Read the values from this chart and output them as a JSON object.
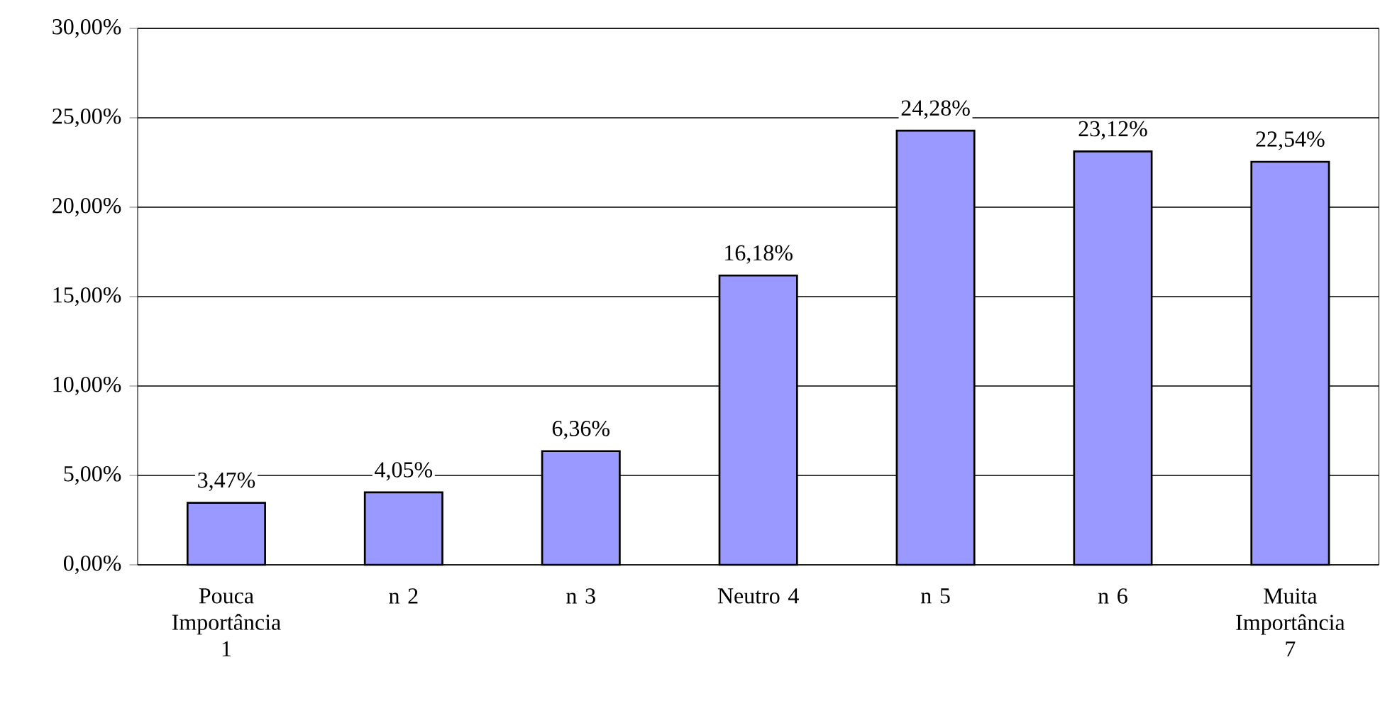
{
  "chart_data": {
    "type": "bar",
    "categories": [
      "Pouca Importância 1",
      "n 2",
      "n 3",
      "Neutro 4",
      "n 5",
      "n 6",
      "Muita Importância 7"
    ],
    "values": [
      3.47,
      4.05,
      6.36,
      16.18,
      24.28,
      23.12,
      22.54
    ],
    "value_labels": [
      "3,47%",
      "4,05%",
      "6,36%",
      "16,18%",
      "24,28%",
      "23,12%",
      "22,54%"
    ],
    "color": "#9999ff",
    "ylim": [
      0,
      30
    ],
    "yticks": [
      {
        "value": 0,
        "label": "0,00%"
      },
      {
        "value": 5,
        "label": "5,00%"
      },
      {
        "value": 10,
        "label": "10,00%"
      },
      {
        "value": 15,
        "label": "15,00%"
      },
      {
        "value": 20,
        "label": "20,00%"
      },
      {
        "value": 25,
        "label": "25,00%"
      },
      {
        "value": 30,
        "label": "30,00%"
      }
    ],
    "grid": "y"
  }
}
